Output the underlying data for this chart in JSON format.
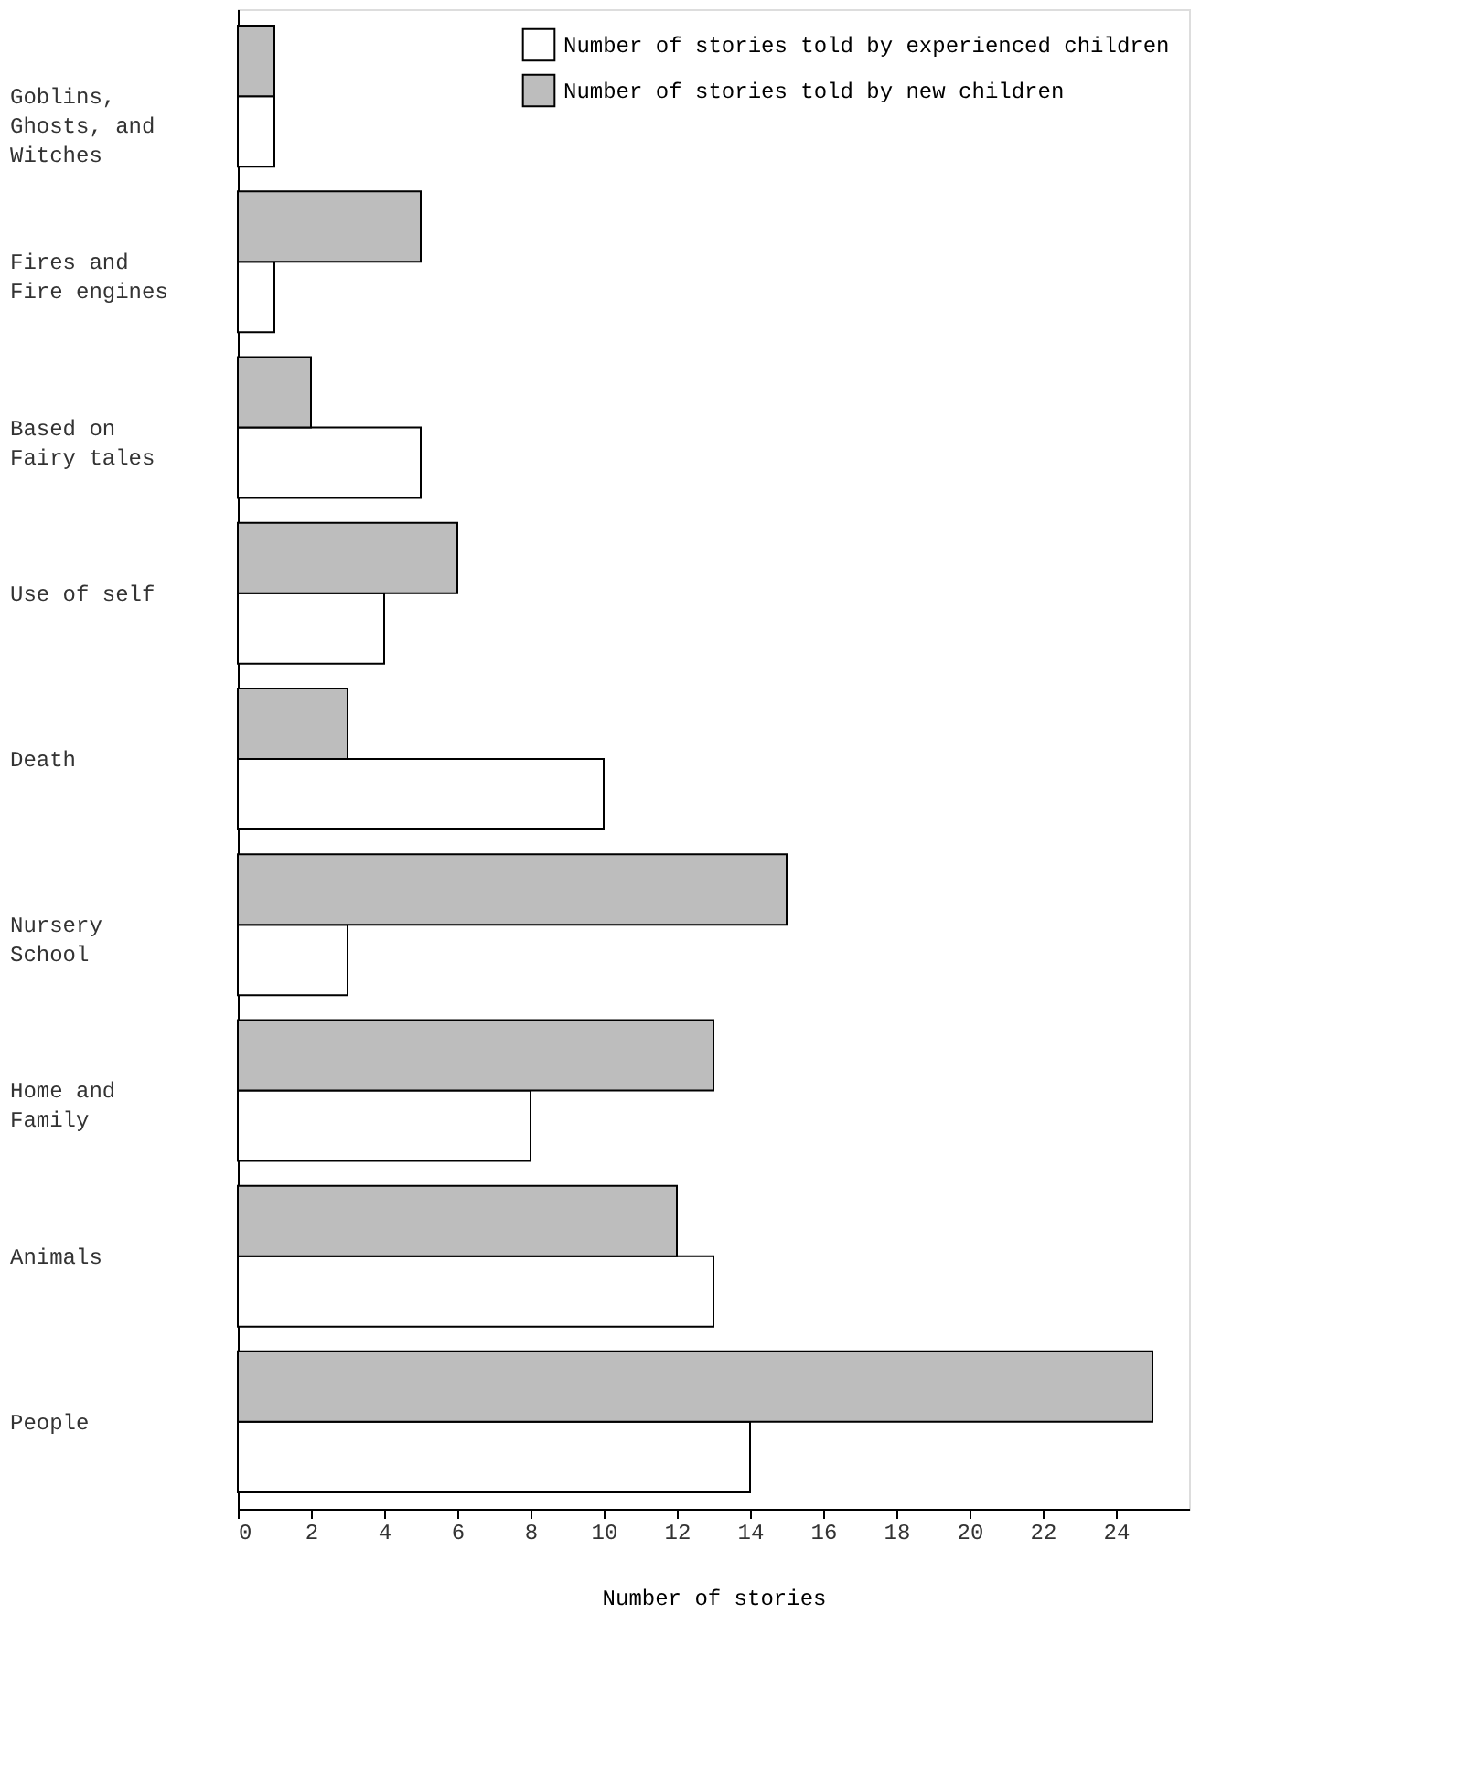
{
  "chart_data": {
    "type": "bar",
    "orientation": "horizontal",
    "xlabel": "Number of stories",
    "categories": [
      "Goblins, Ghosts, and Witches",
      "Fires and Fire engines",
      "Based on Fairy tales",
      "Use of self",
      "Death",
      "Nursery School",
      "Home and Family",
      "Animals",
      "People"
    ],
    "series": [
      {
        "name": "Number of stories told by experienced children",
        "color": "#ffffff",
        "values": [
          1,
          1,
          5,
          4,
          10,
          3,
          8,
          13,
          14
        ]
      },
      {
        "name": "Number of stories told by new children",
        "color": "#bdbdbd",
        "values": [
          1,
          5,
          2,
          6,
          3,
          15,
          13,
          12,
          25
        ]
      }
    ],
    "xlim": [
      0,
      26
    ],
    "xticks": [
      0,
      2,
      4,
      6,
      8,
      10,
      12,
      14,
      16,
      18,
      20,
      22,
      24
    ],
    "grid": false,
    "legend": "top right"
  }
}
